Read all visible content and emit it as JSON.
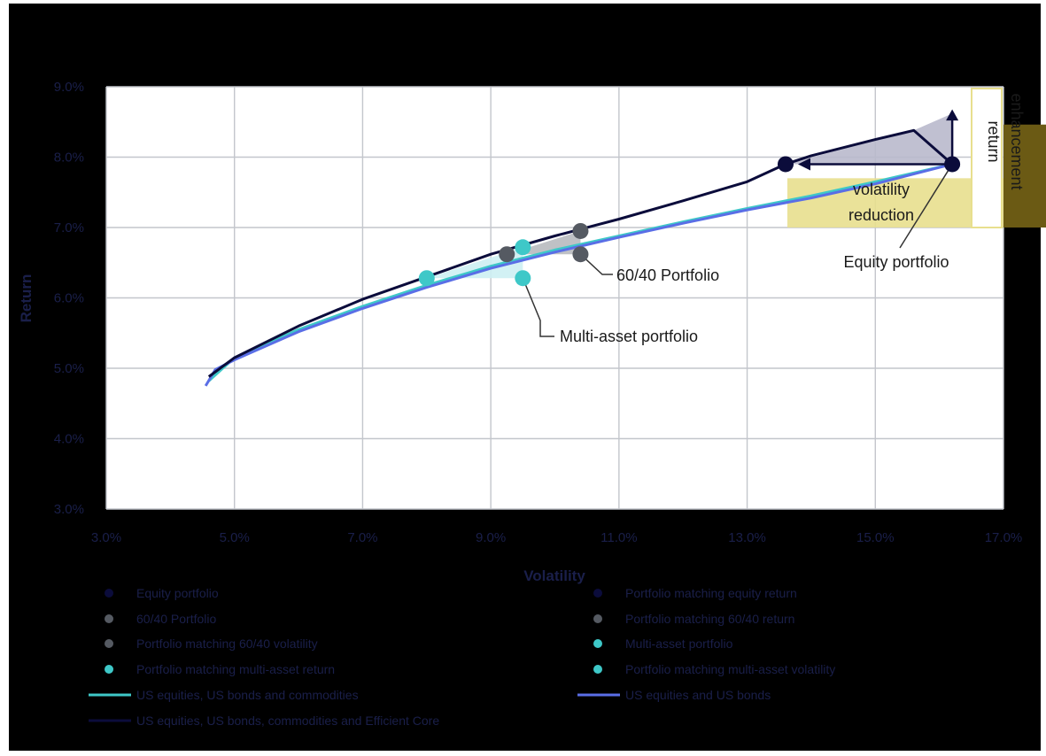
{
  "chart_data": {
    "type": "line",
    "xlabel": "Volatility",
    "ylabel": "Return",
    "xlim": [
      3.0,
      17.0
    ],
    "ylim": [
      3.0,
      9.0
    ],
    "x_ticks": [
      "3.0%",
      "5.0%",
      "7.0%",
      "9.0%",
      "11.0%",
      "13.0%",
      "15.0%",
      "17.0%"
    ],
    "y_ticks": [
      "3.0%",
      "4.0%",
      "5.0%",
      "6.0%",
      "7.0%",
      "8.0%",
      "9.0%"
    ],
    "grid": true,
    "colors": {
      "dark_navy": "#0b0c3b",
      "teal": "#3ec8c8",
      "blue": "#5a6ee6",
      "gray": "#555a62",
      "yellow": "#e8df8e",
      "olive": "#6b5a14",
      "shade_navy": "#b9b9cc",
      "shade_teal": "#cdeff3"
    },
    "series": [
      {
        "name": "US equities, US bonds and commodities",
        "color": "#3ec8c8",
        "points": [
          [
            4.6,
            4.82
          ],
          [
            5.0,
            5.15
          ],
          [
            6.0,
            5.55
          ],
          [
            7.0,
            5.88
          ],
          [
            8.0,
            6.18
          ],
          [
            9.0,
            6.45
          ],
          [
            10.0,
            6.68
          ],
          [
            11.0,
            6.88
          ],
          [
            12.0,
            7.08
          ],
          [
            13.0,
            7.27
          ],
          [
            14.0,
            7.45
          ],
          [
            15.0,
            7.65
          ],
          [
            16.2,
            7.9
          ]
        ]
      },
      {
        "name": "US equities and US bonds",
        "color": "#5a6ee6",
        "points": [
          [
            4.55,
            4.75
          ],
          [
            4.7,
            4.98
          ],
          [
            5.0,
            5.12
          ],
          [
            6.0,
            5.52
          ],
          [
            7.0,
            5.85
          ],
          [
            8.0,
            6.15
          ],
          [
            9.0,
            6.42
          ],
          [
            10.0,
            6.65
          ],
          [
            11.0,
            6.86
          ],
          [
            12.0,
            7.06
          ],
          [
            13.0,
            7.25
          ],
          [
            14.0,
            7.42
          ],
          [
            15.0,
            7.62
          ],
          [
            16.2,
            7.9
          ]
        ]
      },
      {
        "name": "US equities, US bonds, commodities and Efficient Core",
        "color": "#0b0c3b",
        "points": [
          [
            4.6,
            4.88
          ],
          [
            5.0,
            5.15
          ],
          [
            6.0,
            5.6
          ],
          [
            7.0,
            5.98
          ],
          [
            8.0,
            6.3
          ],
          [
            9.0,
            6.62
          ],
          [
            10.0,
            6.88
          ],
          [
            11.0,
            7.12
          ],
          [
            12.0,
            7.38
          ],
          [
            13.0,
            7.65
          ],
          [
            13.6,
            7.9
          ],
          [
            14.0,
            8.02
          ],
          [
            15.0,
            8.25
          ],
          [
            15.6,
            8.38
          ],
          [
            16.2,
            7.9
          ]
        ]
      }
    ],
    "markers": [
      {
        "name": "Equity portfolio",
        "x": 16.2,
        "y": 7.9,
        "color": "#0b0c3b"
      },
      {
        "name": "Portfolio matching equity return",
        "x": 13.6,
        "y": 7.9,
        "color": "#0b0c3b"
      },
      {
        "name": "60/40 Portfolio",
        "x": 10.4,
        "y": 6.62,
        "color": "#555a62"
      },
      {
        "name": "Portfolio matching 60/40 return",
        "x": 9.25,
        "y": 6.62,
        "color": "#555a62"
      },
      {
        "name": "Portfolio matching 60/40 volatility",
        "x": 10.4,
        "y": 6.95,
        "color": "#555a62"
      },
      {
        "name": "Multi-asset portfolio",
        "x": 9.5,
        "y": 6.28,
        "color": "#3ec8c8"
      },
      {
        "name": "Portfolio matching multi-asset return",
        "x": 8.0,
        "y": 6.28,
        "color": "#3ec8c8"
      },
      {
        "name": "Portfolio matching multi-asset volatility",
        "x": 9.5,
        "y": 6.72,
        "color": "#3ec8c8"
      }
    ],
    "annotations": {
      "equity_portfolio": "Equity portfolio",
      "sixty_forty": "60/40 Portfolio",
      "multi_asset": "Multi-asset portfolio",
      "volatility_reduction_1": "volatility",
      "volatility_reduction_2": "reduction",
      "return_enhancement_1": "return",
      "return_enhancement_2": "enhancement"
    },
    "legend": {
      "position": "bottom",
      "items": [
        {
          "label": "Equity portfolio",
          "kind": "dot",
          "color": "#0b0c3b"
        },
        {
          "label": "Portfolio matching equity return",
          "kind": "dot",
          "color": "#0b0c3b"
        },
        {
          "label": "60/40 Portfolio",
          "kind": "dot",
          "color": "#555a62"
        },
        {
          "label": "Portfolio matching 60/40 return",
          "kind": "dot",
          "color": "#555a62"
        },
        {
          "label": "Portfolio matching 60/40 volatility",
          "kind": "dot",
          "color": "#555a62"
        },
        {
          "label": "Multi-asset portfolio",
          "kind": "dot",
          "color": "#3ec8c8"
        },
        {
          "label": "Portfolio matching multi-asset return",
          "kind": "dot",
          "color": "#3ec8c8"
        },
        {
          "label": "Portfolio matching multi-asset volatility",
          "kind": "dot",
          "color": "#3ec8c8"
        },
        {
          "label": "US equities, US bonds and commodities",
          "kind": "line",
          "color": "#3ec8c8"
        },
        {
          "label": "US equities and US bonds",
          "kind": "line",
          "color": "#5a6ee6"
        },
        {
          "label": "US equities, US bonds, commodities and Efficient Core",
          "kind": "line",
          "color": "#0b0c3b"
        }
      ]
    }
  }
}
